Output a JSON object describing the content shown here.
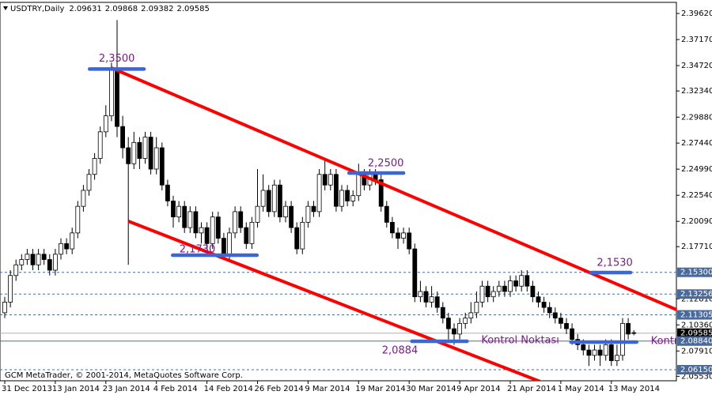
{
  "chart_data": {
    "type": "candlestick",
    "footer": "GCM MetaTrader, © 2001-2014, MetaQuotes Software Corp.",
    "categories": [
      "31 Dec 2013",
      null,
      null,
      null,
      null,
      null,
      null,
      null,
      null,
      "13 Jan 2014",
      null,
      null,
      null,
      null,
      null,
      null,
      null,
      null,
      "23 Jan 2014",
      null,
      null,
      null,
      null,
      null,
      null,
      null,
      null,
      "4 Feb 2014",
      null,
      null,
      null,
      null,
      null,
      null,
      null,
      null,
      "14 Feb 2014",
      null,
      null,
      null,
      null,
      null,
      null,
      null,
      null,
      "26 Feb 2014",
      null,
      null,
      null,
      null,
      null,
      null,
      null,
      null,
      "9 Mar 2014",
      null,
      null,
      null,
      null,
      null,
      null,
      null,
      null,
      "19 Mar 2014",
      null,
      null,
      null,
      null,
      null,
      null,
      null,
      null,
      "30 Mar 2014",
      null,
      null,
      null,
      null,
      null,
      null,
      null,
      null,
      "9 Apr 2014",
      null,
      null,
      null,
      null,
      null,
      null,
      null,
      null,
      "21 Apr 2014",
      null,
      null,
      null,
      null,
      null,
      null,
      null,
      null,
      "1 May 2014",
      null,
      null,
      null,
      null,
      null,
      null,
      null,
      null,
      "13 May 2014",
      null,
      null,
      null,
      null
    ],
    "series": [
      {
        "name": "USDTRY,Daily",
        "up_color": "#ffffff",
        "down_color": "#000000",
        "open": [
          2.115,
          2.125,
          2.15,
          2.16,
          2.165,
          2.17,
          2.16,
          2.17,
          2.165,
          2.155,
          2.17,
          2.18,
          2.175,
          2.19,
          2.215,
          2.23,
          2.245,
          2.26,
          2.285,
          2.3,
          2.345,
          2.29,
          2.27,
          2.255,
          2.275,
          2.26,
          2.28,
          2.25,
          2.27,
          2.235,
          2.22,
          2.205,
          2.215,
          2.195,
          2.21,
          2.19,
          2.195,
          2.18,
          2.205,
          2.185,
          2.17,
          2.19,
          2.21,
          2.195,
          2.18,
          2.2,
          2.215,
          2.23,
          2.21,
          2.235,
          2.205,
          2.215,
          2.195,
          2.175,
          2.2,
          2.215,
          2.21,
          2.245,
          2.235,
          2.245,
          2.215,
          2.23,
          2.22,
          2.225,
          2.245,
          2.235,
          2.245,
          2.24,
          2.215,
          2.2,
          2.19,
          2.185,
          2.19,
          2.175,
          2.13,
          2.135,
          2.125,
          2.13,
          2.12,
          2.11,
          2.1,
          2.095,
          2.105,
          2.11,
          2.115,
          2.125,
          2.14,
          2.13,
          2.135,
          2.14,
          2.135,
          2.145,
          2.14,
          2.15,
          2.14,
          2.13,
          2.125,
          2.12,
          2.115,
          2.11,
          2.105,
          2.1,
          2.09,
          2.085,
          2.08,
          2.075,
          2.08,
          2.075,
          2.085,
          2.07,
          2.075,
          2.105,
          2.09631
        ],
        "high": [
          2.13,
          2.155,
          2.165,
          2.17,
          2.175,
          2.175,
          2.175,
          2.175,
          2.17,
          2.175,
          2.185,
          2.185,
          2.195,
          2.22,
          2.235,
          2.25,
          2.265,
          2.29,
          2.31,
          2.35,
          2.39,
          2.3,
          2.28,
          2.285,
          2.28,
          2.285,
          2.285,
          2.28,
          2.275,
          2.24,
          2.225,
          2.22,
          2.22,
          2.215,
          2.215,
          2.2,
          2.2,
          2.21,
          2.21,
          2.19,
          2.195,
          2.215,
          2.215,
          2.2,
          2.205,
          2.25,
          2.245,
          2.235,
          2.24,
          2.24,
          2.22,
          2.22,
          2.2,
          2.205,
          2.22,
          2.22,
          2.25,
          2.26,
          2.25,
          2.25,
          2.235,
          2.235,
          2.23,
          2.255,
          2.25,
          2.25,
          2.25,
          2.245,
          2.22,
          2.205,
          2.195,
          2.195,
          2.195,
          2.18,
          2.145,
          2.14,
          2.14,
          2.135,
          2.125,
          2.115,
          2.105,
          2.11,
          2.115,
          2.125,
          2.135,
          2.145,
          2.145,
          2.14,
          2.145,
          2.145,
          2.15,
          2.15,
          2.155,
          2.155,
          2.145,
          2.135,
          2.13,
          2.125,
          2.12,
          2.115,
          2.11,
          2.105,
          2.095,
          2.09,
          2.085,
          2.085,
          2.085,
          2.09,
          2.09,
          2.085,
          2.11,
          2.11,
          2.09868
        ],
        "low": [
          2.11,
          2.12,
          2.145,
          2.155,
          2.16,
          2.155,
          2.155,
          2.16,
          2.15,
          2.15,
          2.165,
          2.17,
          2.17,
          2.185,
          2.21,
          2.225,
          2.24,
          2.255,
          2.28,
          2.295,
          2.28,
          2.26,
          2.16,
          2.25,
          2.25,
          2.255,
          2.245,
          2.245,
          2.23,
          2.215,
          2.195,
          2.2,
          2.19,
          2.19,
          2.185,
          2.18,
          2.175,
          2.175,
          2.18,
          2.165,
          2.165,
          2.185,
          2.19,
          2.175,
          2.175,
          2.195,
          2.21,
          2.205,
          2.205,
          2.2,
          2.2,
          2.19,
          2.17,
          2.17,
          2.195,
          2.205,
          2.205,
          2.23,
          2.23,
          2.21,
          2.21,
          2.215,
          2.215,
          2.22,
          2.23,
          2.23,
          2.235,
          2.21,
          2.195,
          2.185,
          2.175,
          2.18,
          2.17,
          2.125,
          2.125,
          2.12,
          2.12,
          2.115,
          2.105,
          2.09,
          2.085,
          2.09,
          2.1,
          2.105,
          2.11,
          2.12,
          2.125,
          2.125,
          2.13,
          2.13,
          2.13,
          2.135,
          2.135,
          2.135,
          2.125,
          2.12,
          2.115,
          2.11,
          2.105,
          2.1,
          2.095,
          2.085,
          2.08,
          2.075,
          2.065,
          2.07,
          2.065,
          2.07,
          2.065,
          2.065,
          2.07,
          2.09,
          2.09382
        ],
        "close": [
          2.125,
          2.15,
          2.16,
          2.165,
          2.17,
          2.16,
          2.17,
          2.165,
          2.155,
          2.17,
          2.18,
          2.175,
          2.19,
          2.215,
          2.23,
          2.245,
          2.26,
          2.285,
          2.3,
          2.345,
          2.29,
          2.27,
          2.255,
          2.275,
          2.26,
          2.28,
          2.25,
          2.27,
          2.235,
          2.22,
          2.205,
          2.215,
          2.195,
          2.21,
          2.19,
          2.195,
          2.18,
          2.205,
          2.185,
          2.17,
          2.19,
          2.21,
          2.195,
          2.18,
          2.2,
          2.215,
          2.23,
          2.21,
          2.235,
          2.205,
          2.215,
          2.195,
          2.175,
          2.2,
          2.215,
          2.21,
          2.245,
          2.235,
          2.245,
          2.215,
          2.23,
          2.22,
          2.225,
          2.245,
          2.235,
          2.245,
          2.24,
          2.215,
          2.2,
          2.19,
          2.185,
          2.19,
          2.175,
          2.13,
          2.135,
          2.125,
          2.13,
          2.12,
          2.11,
          2.1,
          2.095,
          2.105,
          2.11,
          2.115,
          2.125,
          2.14,
          2.13,
          2.135,
          2.14,
          2.135,
          2.145,
          2.14,
          2.15,
          2.14,
          2.13,
          2.125,
          2.12,
          2.115,
          2.11,
          2.105,
          2.1,
          2.09,
          2.085,
          2.08,
          2.075,
          2.08,
          2.075,
          2.085,
          2.07,
          2.075,
          2.105,
          2.095,
          2.09585
        ]
      }
    ],
    "ylim": [
      2.0511,
      2.4029
    ],
    "yticks": [
      {
        "value": 2.3962,
        "label": "2.39620"
      },
      {
        "value": 2.3717,
        "label": "2.37170"
      },
      {
        "value": 2.3472,
        "label": "2.34720"
      },
      {
        "value": 2.3234,
        "label": "2.32340"
      },
      {
        "value": 2.2988,
        "label": "2.29880"
      },
      {
        "value": 2.2744,
        "label": "2.27440"
      },
      {
        "value": 2.2499,
        "label": "2.24990"
      },
      {
        "value": 2.2254,
        "label": "2.22540"
      },
      {
        "value": 2.2009,
        "label": "2.20090"
      },
      {
        "value": 2.1771,
        "label": "2.17710"
      },
      {
        "value": 2.1281,
        "label": "2.12810"
      },
      {
        "value": 2.1036,
        "label": "2.10360"
      },
      {
        "value": 2.0791,
        "label": "2.07910"
      },
      {
        "value": 2.0553,
        "label": "2.05530"
      }
    ],
    "hlines": [
      {
        "value": 2.153,
        "label": "2.15300",
        "color": "#4a6a9c",
        "style": "dashed"
      },
      {
        "value": 2.13256,
        "label": "2.13256",
        "color": "#4a6a9c",
        "style": "dashed"
      },
      {
        "value": 2.11305,
        "label": "2.11305",
        "color": "#4a6a9c",
        "style": "dashed"
      },
      {
        "value": 2.09585,
        "label": "2.09585",
        "color": "#000000",
        "style": "current"
      },
      {
        "value": 2.0884,
        "label": "2.08840",
        "color": "#4a6a9c",
        "style": "solid"
      },
      {
        "value": 2.0615,
        "label": "2.06150",
        "color": "#4a6a9c",
        "style": "dashed"
      }
    ],
    "trendlines": [
      {
        "x": [
          19,
          120
        ],
        "y": [
          2.345,
          2.117
        ],
        "color": "#ff0000"
      },
      {
        "x": [
          22,
          96
        ],
        "y": [
          2.201,
          2.049
        ],
        "color": "#ff0000"
      }
    ],
    "segments": [
      {
        "x": [
          15.1,
          24.8
        ],
        "y": 2.344,
        "label": "2,3500",
        "color": "#3a66d8"
      },
      {
        "x": [
          61.3,
          71
        ],
        "y": 2.2463,
        "label": "2,2500",
        "color": "#3a66d8"
      },
      {
        "x": [
          29.9,
          44.9
        ],
        "y": 2.1691,
        "label": "2,1730",
        "color": "#3a66d8"
      },
      {
        "x": [
          104.4,
          111.4
        ],
        "y": 2.1528,
        "label": "2,1530",
        "color": "#3a66d8"
      },
      {
        "x": [
          72.5,
          82.3
        ],
        "y": 2.0882,
        "label": "2,0884",
        "note": "Kontrol Noktası",
        "color": "#3a66d8"
      },
      {
        "x": [
          100.8,
          112.5
        ],
        "y": 2.0875,
        "note": "Kontrol",
        "color": "#3a66d8"
      }
    ]
  }
}
